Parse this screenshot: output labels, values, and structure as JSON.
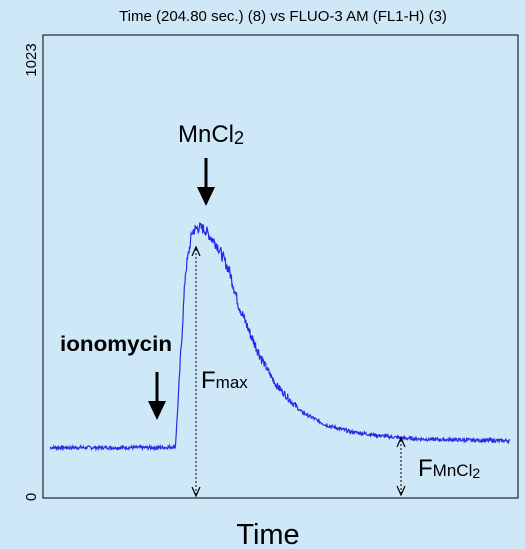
{
  "chart_data": {
    "type": "line",
    "title": "Time (204.80 sec.) (8) vs FLUO-3 AM (FL1-H) (3)",
    "xlabel": "Time",
    "ylabel": "",
    "ylim": [
      0,
      1023
    ],
    "yticks": [
      "0",
      "1023"
    ],
    "grid": false,
    "series": [
      {
        "color": "#2a2ae6",
        "x": [
          0,
          20,
          40,
          60,
          80,
          100,
          120,
          135,
          150,
          162,
          170,
          178,
          185,
          200,
          215,
          225,
          240,
          255,
          270,
          300,
          330,
          360,
          400,
          430,
          460,
          490,
          520,
          550
        ],
        "y": [
          110,
          110,
          110,
          110,
          110,
          110,
          110,
          110,
          112,
          500,
          590,
          600,
          595,
          560,
          500,
          430,
          360,
          300,
          250,
          190,
          160,
          145,
          135,
          130,
          128,
          127,
          126,
          125
        ]
      }
    ],
    "annotations": {
      "ionomycin": "ionomycin",
      "mncl2_main": "MnCl",
      "mncl2_sub": "2",
      "fmax_main": "F",
      "fmax_sub": "max",
      "fmncl2_main": "F",
      "fmncl2_sub": "MnCl",
      "fmncl2_sub2": "2"
    },
    "colors": {
      "line": "#2a2ae6",
      "background": "#cfe8f8",
      "axis": "#000000"
    }
  }
}
